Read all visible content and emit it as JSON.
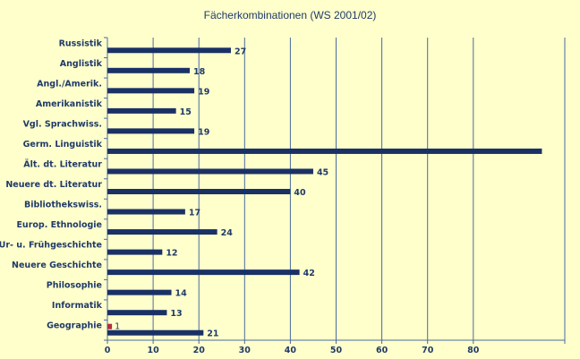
{
  "chart_data": {
    "type": "bar",
    "orientation": "horizontal",
    "title": "Fächerkombinationen (WS 2001/02)",
    "xlabel": "",
    "ylabel": "",
    "xlim": [
      0,
      100
    ],
    "x_ticks": [
      0,
      10,
      20,
      30,
      40,
      50,
      60,
      70,
      80
    ],
    "grid": "vertical",
    "legend": "none",
    "categories": [
      "Russistik",
      "Anglistik",
      "Angl./Amerik.",
      "Amerikanistik",
      "Vgl. Sprachwiss.",
      "Germ. Linguistik",
      "Ält. dt. Literatur",
      "Neuere dt. Literatur",
      "Bibliothekswiss.",
      "Europ. Ethnologie",
      "Ur- u. Frühgeschichte",
      "Neuere Geschichte",
      "Philosophie",
      "Informatik",
      "Geographie"
    ],
    "series": [
      {
        "color": "#1a3166",
        "values": [
          27,
          18,
          19,
          15,
          19,
          95,
          45,
          40,
          17,
          24,
          12,
          42,
          14,
          13,
          21
        ],
        "labels": [
          "27",
          "18",
          "19",
          "15",
          "19",
          "",
          "45",
          "40",
          "17",
          "24",
          "12",
          "42",
          "14",
          "13",
          "21"
        ]
      },
      {
        "color": "#b03040",
        "values": [
          null,
          null,
          null,
          null,
          null,
          null,
          null,
          null,
          null,
          null,
          null,
          null,
          null,
          null,
          1
        ],
        "labels": [
          "",
          "",
          "",
          "",
          "",
          "",
          "",
          "",
          "",
          "",
          "",
          "",
          "",
          "",
          "1"
        ]
      }
    ]
  },
  "colors": {
    "background": "#ffffcc",
    "grid": "#4a6aa0",
    "text": "#1f3a68"
  }
}
